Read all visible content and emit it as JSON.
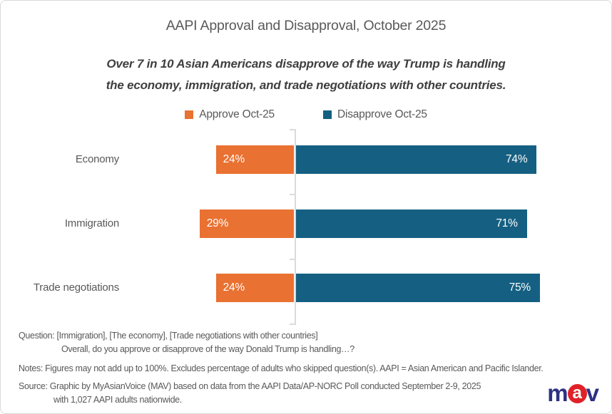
{
  "page": {
    "title": "AAPI Approval and Disapproval, October 2025",
    "subtitle_line1": "Over 7 in 10 Asian Americans disapprove of the way Trump is handling",
    "subtitle_line2": "the economy, immigration, and trade negotiations with other countries."
  },
  "legend": {
    "approve": {
      "label": "Approve Oct-25",
      "color": "#E97132"
    },
    "disapprove": {
      "label": "Disapprove Oct-25",
      "color": "#156082"
    }
  },
  "chart_data": {
    "type": "bar",
    "orientation": "horizontal-diverging",
    "title": "AAPI Approval and Disapproval, October 2025",
    "categories": [
      "Economy",
      "Immigration",
      "Trade negotiations"
    ],
    "series": [
      {
        "name": "Approve Oct-25",
        "color": "#E97132",
        "direction": "left",
        "values": [
          24,
          29,
          24
        ],
        "labels": [
          "24%",
          "29%",
          "24%"
        ]
      },
      {
        "name": "Disapprove Oct-25",
        "color": "#156082",
        "direction": "right",
        "values": [
          74,
          71,
          75
        ],
        "labels": [
          "74%",
          "71%",
          "75%"
        ]
      }
    ],
    "value_suffix": "%",
    "data_labels": "inside-end, white",
    "axis": {
      "zero_line_color": "#DBDBDB",
      "gridlines": false,
      "legend_position": "top-center"
    }
  },
  "footnotes": {
    "question_line1": "Question: [Immigration], [The economy], [Trade negotiations with other countries]",
    "question_line2": "Overall, do you approve or disapprove of the way Donald Trump is handling…?",
    "notes": "Notes: Figures may not add up to 100%.  Excludes percentage of adults who skipped question(s).  AAPI = Asian American and Pacific Islander.",
    "source_line1": "Source: Graphic by MyAsianVoice (MAV) based on data from the AAPI Data/AP-NORC Poll conducted September 2-9, 2025",
    "source_line2": "with 1,027 AAPI adults nationwide."
  },
  "logo": {
    "letter_m": "m",
    "letter_a": "a",
    "letter_v": "v",
    "navy_color": "#2D3183",
    "red_color": "#E02128"
  }
}
